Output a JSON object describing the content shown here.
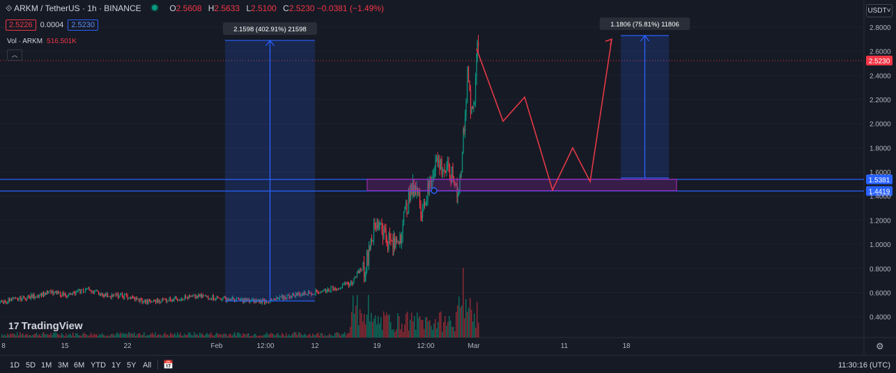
{
  "header": {
    "symbol": "ARKM / TetherUS · 1h · BINANCE",
    "o_label": "O",
    "open": "2.5608",
    "h_label": "H",
    "high": "2.5633",
    "l_label": "L",
    "low": "2.5100",
    "c_label": "C",
    "close": "2.5230",
    "change": "−0.0381 (−1.49%)",
    "sell": "2.5226",
    "spread": "0.0004",
    "buy": "2.5230"
  },
  "volume": {
    "label": "Vol · ARKM",
    "value": "516.501K"
  },
  "currency": "USDT",
  "logo_text": "TradingView",
  "ranges": [
    "1D",
    "5D",
    "1M",
    "3M",
    "6M",
    "YTD",
    "1Y",
    "5Y",
    "All"
  ],
  "clock": "11:30:16 (UTC)",
  "colors": {
    "background": "#161a25",
    "up": "#089981",
    "down": "#f23645",
    "accent_blue": "#2962ff",
    "zone_purple": "#9c27b0",
    "projection_red": "#f23645"
  },
  "chart_data": {
    "type": "candlestick",
    "symbol": "ARKM/USDT",
    "timeframe": "1h",
    "x_tick_labels": [
      "8",
      "15",
      "22",
      "Feb",
      "12:00",
      "12",
      "19",
      "12:00",
      "Mar",
      "11",
      "18"
    ],
    "y_tick_labels": [
      "0.4000",
      "0.6000",
      "0.8000",
      "1.0000",
      "1.2000",
      "1.4000",
      "1.6000",
      "1.8000",
      "2.0000",
      "2.2000",
      "2.4000",
      "2.6000",
      "2.8000"
    ],
    "ylim": [
      0.32,
      2.9
    ],
    "price_path": [
      {
        "x": 0,
        "y": 0.52
      },
      {
        "x": 40,
        "y": 0.56
      },
      {
        "x": 70,
        "y": 0.6
      },
      {
        "x": 100,
        "y": 0.58
      },
      {
        "x": 125,
        "y": 0.63
      },
      {
        "x": 150,
        "y": 0.58
      },
      {
        "x": 180,
        "y": 0.57
      },
      {
        "x": 210,
        "y": 0.52
      },
      {
        "x": 250,
        "y": 0.55
      },
      {
        "x": 290,
        "y": 0.57
      },
      {
        "x": 320,
        "y": 0.55
      },
      {
        "x": 360,
        "y": 0.53
      },
      {
        "x": 388,
        "y": 0.53
      },
      {
        "x": 420,
        "y": 0.58
      },
      {
        "x": 460,
        "y": 0.61
      },
      {
        "x": 490,
        "y": 0.65
      },
      {
        "x": 505,
        "y": 0.68
      },
      {
        "x": 515,
        "y": 0.78
      },
      {
        "x": 525,
        "y": 0.82
      },
      {
        "x": 532,
        "y": 1.05
      },
      {
        "x": 545,
        "y": 1.2
      },
      {
        "x": 555,
        "y": 1.05
      },
      {
        "x": 565,
        "y": 0.98
      },
      {
        "x": 575,
        "y": 1.1
      },
      {
        "x": 585,
        "y": 1.35
      },
      {
        "x": 595,
        "y": 1.5
      },
      {
        "x": 605,
        "y": 1.3
      },
      {
        "x": 615,
        "y": 1.45
      },
      {
        "x": 625,
        "y": 1.7
      },
      {
        "x": 638,
        "y": 1.62
      },
      {
        "x": 650,
        "y": 1.55
      },
      {
        "x": 657,
        "y": 1.45
      },
      {
        "x": 662,
        "y": 1.6
      },
      {
        "x": 666,
        "y": 2.0
      },
      {
        "x": 671,
        "y": 2.4
      },
      {
        "x": 677,
        "y": 2.05
      },
      {
        "x": 681,
        "y": 2.2
      },
      {
        "x": 685,
        "y": 2.72
      },
      {
        "x": 688,
        "y": 2.55
      }
    ],
    "current_price": "2.5230",
    "horizontal_levels": [
      "1.5381",
      "1.4419"
    ],
    "measure_left": {
      "label": "2.1598 (402.91%) 21598",
      "from": 0.53,
      "to": 2.69
    },
    "measure_right": {
      "label": "1.1806 (75.81%) 11806",
      "from": 1.55,
      "to": 2.73
    },
    "demand_zone": {
      "from": 1.445,
      "to": 1.54
    },
    "projection_path": [
      {
        "x": 684,
        "y": 2.62
      },
      {
        "x": 722,
        "y": 2.02
      },
      {
        "x": 753,
        "y": 2.22
      },
      {
        "x": 793,
        "y": 1.45
      },
      {
        "x": 822,
        "y": 1.8
      },
      {
        "x": 847,
        "y": 1.52
      },
      {
        "x": 878,
        "y": 2.7
      }
    ]
  }
}
